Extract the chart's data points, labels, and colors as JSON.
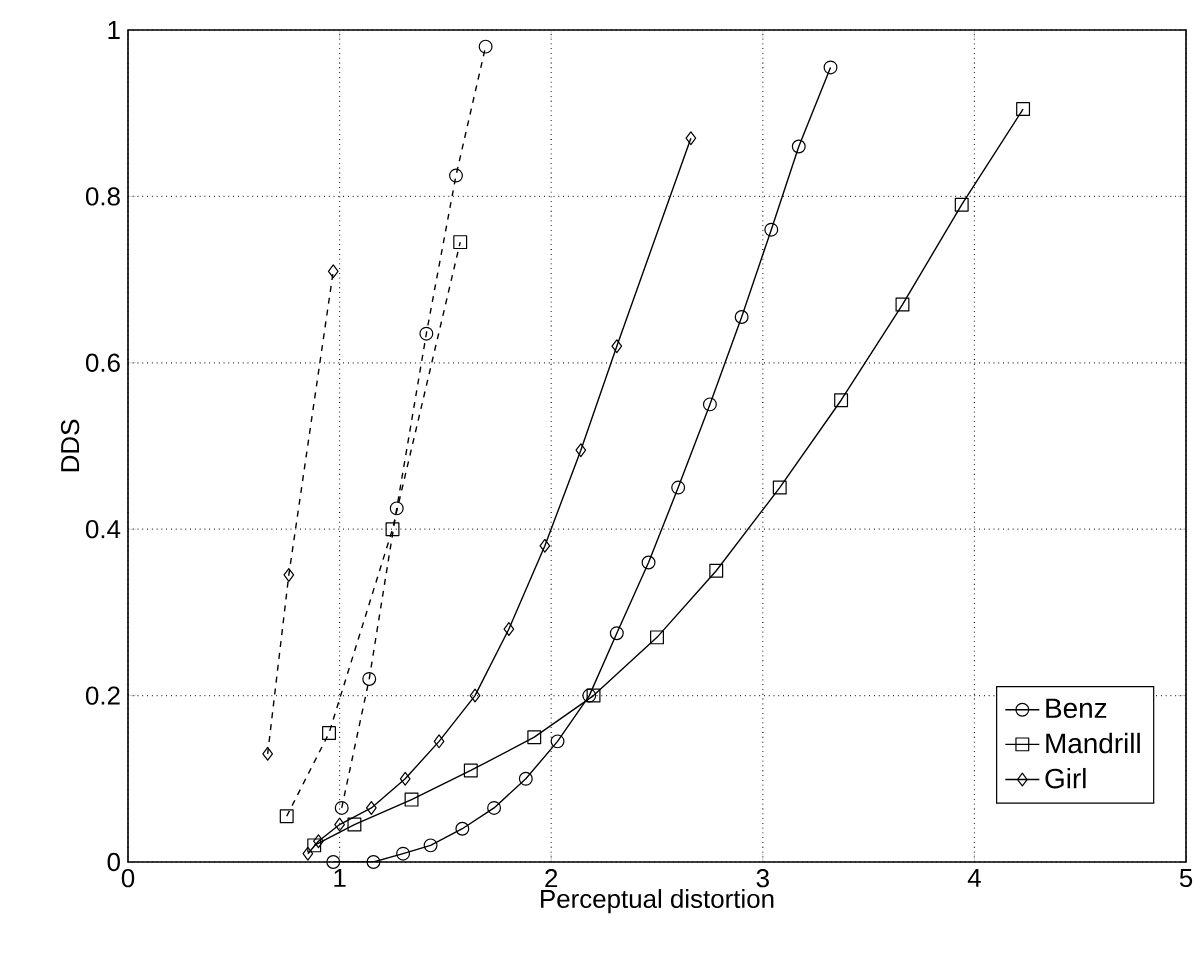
{
  "chart_data": {
    "type": "line",
    "xlabel": "Perceptual distortion",
    "ylabel": "DDS",
    "xlim": [
      0,
      5
    ],
    "ylim": [
      0,
      1
    ],
    "xticks": [
      0,
      1,
      2,
      3,
      4,
      5
    ],
    "yticks": [
      0,
      0.2,
      0.4,
      0.6,
      0.8,
      1
    ],
    "grid": true,
    "legend": "bottom right",
    "series": [
      {
        "name": "Benz",
        "color": "#000000",
        "marker": "circle",
        "line_style": "solid",
        "x": [
          0.97,
          1.16,
          1.3,
          1.43,
          1.58,
          1.73,
          1.88,
          2.03,
          2.18,
          2.31,
          2.46,
          2.6,
          2.75,
          2.9,
          3.04,
          3.17,
          3.32
        ],
        "values": [
          0,
          0,
          0.01,
          0.02,
          0.04,
          0.065,
          0.1,
          0.145,
          0.2,
          0.275,
          0.36,
          0.45,
          0.55,
          0.655,
          0.76,
          0.86,
          0.955
        ]
      },
      {
        "name": "Mandrill",
        "color": "#000000",
        "marker": "square",
        "line_style": "solid",
        "x": [
          0.88,
          1.07,
          1.34,
          1.62,
          1.92,
          2.2,
          2.5,
          2.78,
          3.08,
          3.37,
          3.66,
          3.94,
          4.23
        ],
        "values": [
          0.02,
          0.045,
          0.075,
          0.11,
          0.15,
          0.2,
          0.27,
          0.35,
          0.45,
          0.555,
          0.67,
          0.79,
          0.905
        ]
      },
      {
        "name": "Girl",
        "color": "#000000",
        "marker": "diamond",
        "line_style": "solid",
        "x": [
          0.85,
          0.9,
          1.0,
          1.15,
          1.31,
          1.47,
          1.64,
          1.8,
          1.97,
          2.14,
          2.31,
          2.66
        ],
        "values": [
          0.01,
          0.025,
          0.045,
          0.065,
          0.1,
          0.145,
          0.2,
          0.28,
          0.38,
          0.495,
          0.62,
          0.87
        ]
      },
      {
        "color": "#000000",
        "marker": "circle",
        "line_style": "dashed",
        "x": [
          1.01,
          1.14,
          1.27,
          1.41,
          1.55,
          1.69
        ],
        "values": [
          0.065,
          0.22,
          0.425,
          0.635,
          0.825,
          0.98
        ]
      },
      {
        "color": "#000000",
        "marker": "square",
        "line_style": "dashed",
        "x": [
          0.75,
          0.95,
          1.25,
          1.57
        ],
        "values": [
          0.055,
          0.155,
          0.4,
          0.745
        ]
      },
      {
        "color": "#000000",
        "marker": "diamond",
        "line_style": "dashed",
        "x": [
          0.66,
          0.76,
          0.97
        ],
        "values": [
          0.13,
          0.345,
          0.71
        ]
      }
    ]
  }
}
